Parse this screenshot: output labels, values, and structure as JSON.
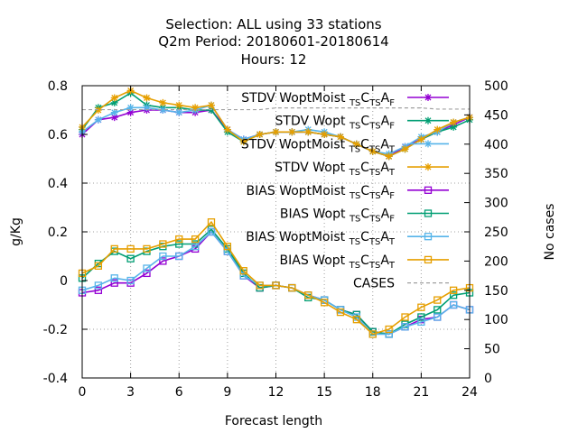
{
  "chart_data": {
    "type": "line",
    "title_lines": [
      "Selection: ALL using    33 stations",
      "Q2m   Period: 20180601-20180614",
      "Hours:  12"
    ],
    "xlabel": "Forecast length",
    "ylabel": "g/Kg",
    "y2label": "No cases",
    "xlim": [
      0,
      24
    ],
    "ylim": [
      -0.4,
      0.8
    ],
    "y2lim": [
      0,
      500
    ],
    "x_ticks": [
      0,
      3,
      6,
      9,
      12,
      15,
      18,
      21,
      24
    ],
    "y_ticks": [
      "-0.4",
      "-0.2",
      "0",
      "0.2",
      "0.4",
      "0.6",
      "0.8"
    ],
    "y2_ticks": [
      "0",
      "50",
      "100",
      "150",
      "200",
      "250",
      "300",
      "350",
      "400",
      "450",
      "500"
    ],
    "grid": "dotted lines at x = 3, 6, 9, 12, 15, 18, 21 and y = -0.2, 0.2, 0.4",
    "legend_position": "top-right",
    "x": [
      0,
      1,
      2,
      3,
      4,
      5,
      6,
      7,
      8,
      9,
      10,
      11,
      12,
      13,
      14,
      15,
      16,
      17,
      18,
      19,
      20,
      21,
      22,
      23,
      24
    ],
    "series": [
      {
        "name": "STDV WoptMoist",
        "legend_subscripts": [
          "TS",
          "TS",
          "F"
        ],
        "color": "#9400d3",
        "marker": "star",
        "axis": "y",
        "values": [
          0.6,
          0.66,
          0.67,
          0.69,
          0.7,
          0.7,
          0.69,
          0.69,
          0.7,
          0.62,
          0.58,
          0.6,
          0.61,
          0.61,
          0.61,
          0.6,
          0.59,
          0.56,
          0.53,
          0.51,
          0.55,
          0.58,
          0.61,
          0.64,
          0.67
        ]
      },
      {
        "name": "STDV Wopt",
        "legend_subscripts": [
          "TS",
          "TS",
          "F"
        ],
        "color": "#009e73",
        "marker": "star",
        "axis": "y",
        "values": [
          0.62,
          0.71,
          0.73,
          0.77,
          0.72,
          0.71,
          0.71,
          0.7,
          0.7,
          0.61,
          0.57,
          0.6,
          0.61,
          0.61,
          0.61,
          0.6,
          0.59,
          0.56,
          0.53,
          0.51,
          0.54,
          0.58,
          0.61,
          0.63,
          0.66
        ]
      },
      {
        "name": "STDV WoptMoist",
        "legend_subscripts": [
          "TS",
          "TS",
          "T"
        ],
        "color": "#56b4e9",
        "marker": "star",
        "axis": "y",
        "values": [
          0.61,
          0.66,
          0.69,
          0.71,
          0.71,
          0.7,
          0.69,
          0.7,
          0.72,
          0.62,
          0.58,
          0.6,
          0.61,
          0.61,
          0.62,
          0.61,
          0.59,
          0.56,
          0.53,
          0.52,
          0.55,
          0.59,
          0.61,
          0.65,
          0.67
        ]
      },
      {
        "name": "STDV Wopt",
        "legend_subscripts": [
          "TS",
          "TS",
          "T"
        ],
        "color": "#e69f00",
        "marker": "star",
        "axis": "y",
        "values": [
          0.63,
          0.7,
          0.75,
          0.78,
          0.75,
          0.73,
          0.72,
          0.71,
          0.72,
          0.62,
          0.57,
          0.6,
          0.61,
          0.61,
          0.61,
          0.6,
          0.59,
          0.56,
          0.53,
          0.51,
          0.54,
          0.58,
          0.62,
          0.65,
          0.67
        ]
      },
      {
        "name": "BIAS WoptMoist",
        "legend_subscripts": [
          "TS",
          "TS",
          "F"
        ],
        "color": "#9400d3",
        "marker": "square",
        "axis": "y",
        "values": [
          -0.05,
          -0.04,
          -0.01,
          -0.01,
          0.03,
          0.08,
          0.1,
          0.13,
          0.2,
          0.12,
          0.02,
          -0.03,
          -0.02,
          -0.03,
          -0.06,
          -0.08,
          -0.12,
          -0.14,
          -0.21,
          -0.22,
          -0.19,
          -0.16,
          -0.15,
          -0.1,
          -0.12
        ]
      },
      {
        "name": "BIAS Wopt",
        "legend_subscripts": [
          "TS",
          "TS",
          "F"
        ],
        "color": "#009e73",
        "marker": "square",
        "axis": "y",
        "values": [
          0.01,
          0.07,
          0.12,
          0.09,
          0.12,
          0.14,
          0.15,
          0.15,
          0.21,
          0.13,
          0.03,
          -0.03,
          -0.02,
          -0.03,
          -0.07,
          -0.08,
          -0.12,
          -0.14,
          -0.21,
          -0.22,
          -0.18,
          -0.15,
          -0.12,
          -0.06,
          -0.05
        ]
      },
      {
        "name": "BIAS WoptMoist",
        "legend_subscripts": [
          "TS",
          "TS",
          "T"
        ],
        "color": "#56b4e9",
        "marker": "square",
        "axis": "y",
        "values": [
          -0.04,
          -0.02,
          0.01,
          0.0,
          0.05,
          0.1,
          0.1,
          0.14,
          0.2,
          0.12,
          0.02,
          -0.02,
          -0.02,
          -0.03,
          -0.06,
          -0.08,
          -0.12,
          -0.15,
          -0.22,
          -0.22,
          -0.19,
          -0.17,
          -0.15,
          -0.1,
          -0.12
        ]
      },
      {
        "name": "BIAS Wopt",
        "legend_subscripts": [
          "TS",
          "TS",
          "T"
        ],
        "color": "#e69f00",
        "marker": "square",
        "axis": "y",
        "values": [
          0.03,
          0.06,
          0.13,
          0.13,
          0.13,
          0.15,
          0.17,
          0.17,
          0.24,
          0.14,
          0.04,
          -0.02,
          -0.02,
          -0.03,
          -0.06,
          -0.09,
          -0.13,
          -0.16,
          -0.22,
          -0.2,
          -0.15,
          -0.11,
          -0.08,
          -0.04,
          -0.03
        ]
      },
      {
        "name": "CASES",
        "color": "#a0a0a0",
        "style": "dashed",
        "axis": "y2",
        "values": [
          459,
          459,
          459,
          459,
          459,
          459,
          459,
          459,
          459,
          459,
          459,
          459,
          462,
          462,
          462,
          462,
          462,
          462,
          462,
          462,
          462,
          462,
          460,
          460,
          460
        ]
      }
    ]
  }
}
